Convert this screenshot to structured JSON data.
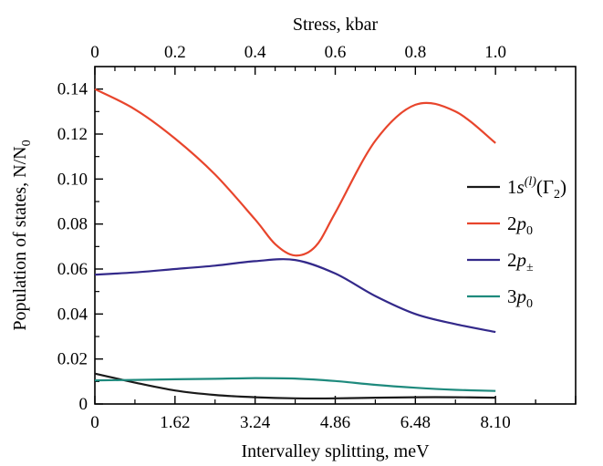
{
  "chart_data": {
    "type": "line",
    "xlabel": "Intervalley splitting, meV",
    "x2label": "Stress, kbar",
    "ylabel": "Population of states, N/N",
    "ylabel_subscript": "0",
    "xlim": [
      0,
      9.72
    ],
    "x2lim": [
      0,
      1.2
    ],
    "ylim": [
      0,
      0.15
    ],
    "xticks": [
      "0",
      "1.62",
      "3.24",
      "4.86",
      "6.48",
      "8.10"
    ],
    "x2ticks": [
      "0",
      "0.2",
      "0.4",
      "0.6",
      "0.8",
      "1.0"
    ],
    "yticks": [
      "0",
      "0.02",
      "0.04",
      "0.06",
      "0.08",
      "0.10",
      "0.12",
      "0.14"
    ],
    "grid": false,
    "legend_position": "right",
    "series": [
      {
        "legend": {
          "prefix": "1",
          "italic": "s",
          "sup": "(l)",
          "after": "(Γ",
          "sub": "2",
          "close": ")"
        },
        "color": "#1a1a1a",
        "x": [
          0,
          0.4,
          0.81,
          1.62,
          2.43,
          3.24,
          4.05,
          4.86,
          5.67,
          6.48,
          7.29,
          8.1
        ],
        "y": [
          0.0135,
          0.0115,
          0.0095,
          0.006,
          0.004,
          0.003,
          0.0025,
          0.0025,
          0.0028,
          0.003,
          0.003,
          0.0028
        ]
      },
      {
        "legend": {
          "prefix": "2",
          "italic": "p",
          "sub": "0"
        },
        "color": "#e8452c",
        "x": [
          0,
          0.81,
          1.62,
          2.43,
          3.24,
          3.65,
          4.05,
          4.46,
          4.86,
          5.67,
          6.48,
          7.29,
          8.1
        ],
        "y": [
          0.14,
          0.131,
          0.118,
          0.102,
          0.082,
          0.071,
          0.066,
          0.07,
          0.085,
          0.117,
          0.133,
          0.13,
          0.116
        ]
      },
      {
        "legend": {
          "prefix": "2",
          "italic": "p",
          "sub": "±"
        },
        "color": "#33298a",
        "x": [
          0,
          0.81,
          1.62,
          2.43,
          3.24,
          4.05,
          4.86,
          5.67,
          6.48,
          7.29,
          8.1
        ],
        "y": [
          0.0575,
          0.0585,
          0.06,
          0.0615,
          0.0635,
          0.064,
          0.058,
          0.048,
          0.04,
          0.0355,
          0.032
        ]
      },
      {
        "legend": {
          "prefix": "3",
          "italic": "p",
          "sub": "0"
        },
        "color": "#1e8a7d",
        "x": [
          0,
          0.81,
          1.62,
          2.43,
          3.24,
          4.05,
          4.86,
          5.67,
          6.48,
          7.29,
          8.1
        ],
        "y": [
          0.0105,
          0.0107,
          0.011,
          0.0112,
          0.0115,
          0.0113,
          0.0102,
          0.0085,
          0.0072,
          0.0063,
          0.0058
        ]
      }
    ]
  }
}
